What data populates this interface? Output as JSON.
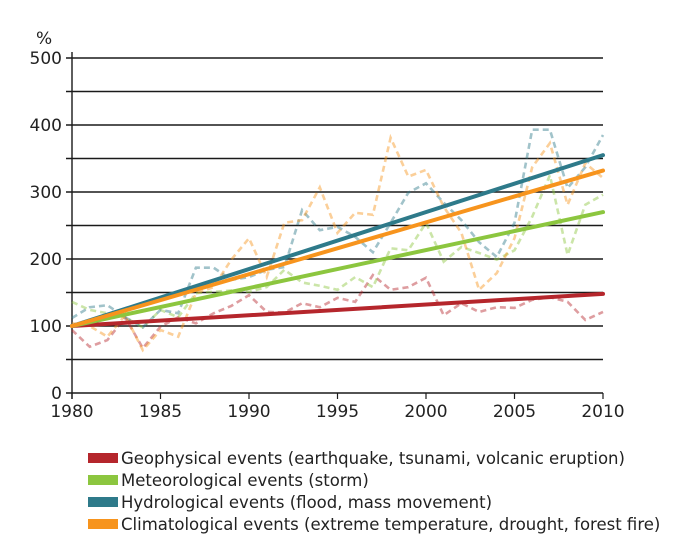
{
  "chart_data": {
    "type": "line",
    "ylabel": "%",
    "ylim": [
      0,
      500
    ],
    "xlim": [
      1980,
      2010
    ],
    "yticks": [
      "0",
      "100",
      "200",
      "300",
      "400",
      "500"
    ],
    "xticks": [
      "1980",
      "1985",
      "1990",
      "1995",
      "2000",
      "2005",
      "2010"
    ],
    "grid": "horizontal every 50",
    "legend_position": "bottom",
    "x": [
      1980,
      1981,
      1982,
      1983,
      1984,
      1985,
      1986,
      1987,
      1988,
      1989,
      1990,
      1991,
      1992,
      1993,
      1994,
      1995,
      1996,
      1997,
      1998,
      1999,
      2000,
      2001,
      2002,
      2003,
      2004,
      2005,
      2006,
      2007,
      2008,
      2009,
      2010
    ],
    "series": [
      {
        "name": "Geophysical events (earthquake, tsunami, volcanic eruption)",
        "color": "#b5262c",
        "values": [
          94,
          69,
          79,
          113,
          67,
          99,
          113,
          104,
          119,
          130,
          146,
          121,
          120,
          134,
          128,
          142,
          136,
          176,
          154,
          158,
          172,
          116,
          134,
          121,
          128,
          127,
          139,
          143,
          136,
          109,
          121
        ],
        "trend": [
          100,
          148
        ]
      },
      {
        "name": "Meteorological events (storm)",
        "color": "#8cc63f",
        "values": [
          136,
          124,
          119,
          113,
          98,
          124,
          113,
          149,
          151,
          153,
          151,
          158,
          184,
          165,
          160,
          154,
          173,
          158,
          216,
          213,
          254,
          196,
          218,
          209,
          199,
          213,
          263,
          325,
          206,
          281,
          296
        ],
        "trend": [
          100,
          270
        ]
      },
      {
        "name": "Hydrological events (flood, mass movement)",
        "color": "#2e7a8a",
        "values": [
          112,
          128,
          131,
          113,
          98,
          124,
          119,
          187,
          187,
          169,
          173,
          184,
          188,
          273,
          243,
          248,
          233,
          210,
          254,
          299,
          313,
          284,
          258,
          225,
          203,
          254,
          393,
          393,
          306,
          337,
          385
        ],
        "trend": [
          100,
          355
        ]
      },
      {
        "name": "Climatological events (extreme temperature, drought, forest fire)",
        "color": "#f7941d",
        "values": [
          104,
          100,
          84,
          116,
          64,
          94,
          84,
          149,
          158,
          199,
          231,
          173,
          254,
          258,
          307,
          239,
          269,
          266,
          381,
          323,
          333,
          278,
          239,
          154,
          179,
          231,
          337,
          373,
          281,
          343,
          321
        ],
        "trend": [
          100,
          332
        ]
      }
    ]
  }
}
